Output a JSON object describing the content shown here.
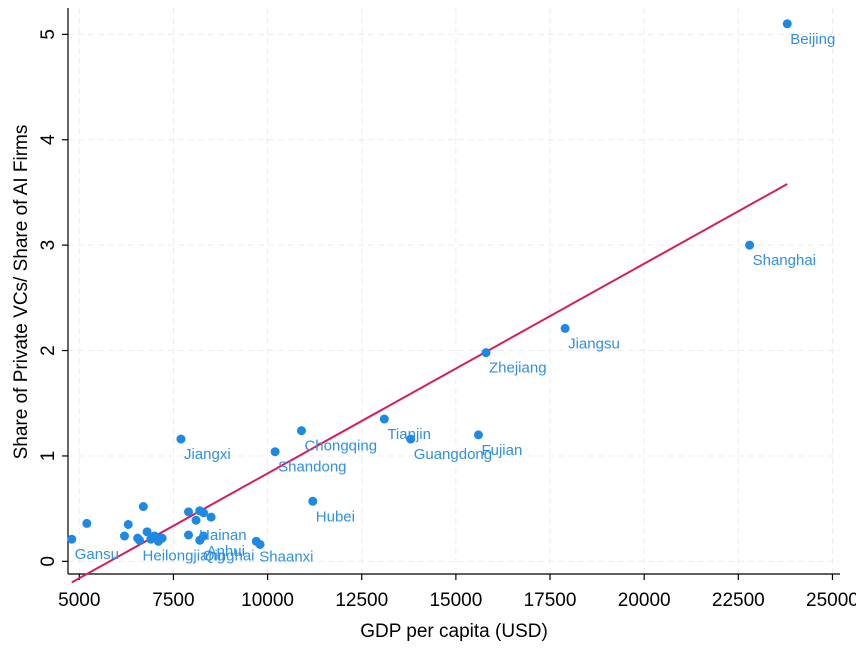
{
  "chart_data": {
    "type": "scatter",
    "xlabel": "GDP per capita (USD)",
    "ylabel": "Share of Private VCs/ Share of AI Firms",
    "xlim": [
      4700,
      25200
    ],
    "ylim": [
      -0.12,
      5.25
    ],
    "xticks": [
      5000,
      7500,
      10000,
      12500,
      15000,
      17500,
      20000,
      22500,
      25000
    ],
    "yticks": [
      0,
      1,
      2,
      3,
      4,
      5
    ],
    "xtick_labels": [
      "5000",
      "7500",
      "10000",
      "12500",
      "15000",
      "17500",
      "20000",
      "22500",
      "25000"
    ],
    "ytick_labels": [
      "0",
      "1",
      "2",
      "3",
      "4",
      "5"
    ],
    "grid": true,
    "points": [
      {
        "x": 23800,
        "y": 5.1,
        "label": "Beijing"
      },
      {
        "x": 22800,
        "y": 3.0,
        "label": "Shanghai"
      },
      {
        "x": 17900,
        "y": 2.21,
        "label": "Jiangsu"
      },
      {
        "x": 15800,
        "y": 1.98,
        "label": "Zhejiang"
      },
      {
        "x": 15600,
        "y": 1.2,
        "label": "Fujian"
      },
      {
        "x": 13800,
        "y": 1.16,
        "label": "Guangdong"
      },
      {
        "x": 13100,
        "y": 1.35,
        "label": "Tianjin"
      },
      {
        "x": 10900,
        "y": 1.24,
        "label": "Chongqing"
      },
      {
        "x": 10200,
        "y": 1.04,
        "label": "Shandong"
      },
      {
        "x": 11200,
        "y": 0.57,
        "label": "Hubei"
      },
      {
        "x": 7700,
        "y": 1.16,
        "label": "Jiangxi"
      },
      {
        "x": 9700,
        "y": 0.19,
        "label": "Shaanxi"
      },
      {
        "x": 8300,
        "y": 0.24,
        "label": "Anhui"
      },
      {
        "x": 8200,
        "y": 0.2,
        "label": "Qinghai"
      },
      {
        "x": 8100,
        "y": 0.39,
        "label": "Hainan"
      },
      {
        "x": 6600,
        "y": 0.2,
        "label": "Heilongjiang"
      },
      {
        "x": 4800,
        "y": 0.21,
        "label": "Gansu"
      },
      {
        "x": 5200,
        "y": 0.36,
        "label": ""
      },
      {
        "x": 6200,
        "y": 0.24,
        "label": ""
      },
      {
        "x": 6300,
        "y": 0.35,
        "label": ""
      },
      {
        "x": 6700,
        "y": 0.52,
        "label": ""
      },
      {
        "x": 6800,
        "y": 0.28,
        "label": ""
      },
      {
        "x": 6900,
        "y": 0.21,
        "label": ""
      },
      {
        "x": 7000,
        "y": 0.24,
        "label": ""
      },
      {
        "x": 7100,
        "y": 0.19,
        "label": ""
      },
      {
        "x": 7200,
        "y": 0.22,
        "label": ""
      },
      {
        "x": 6550,
        "y": 0.22,
        "label": ""
      },
      {
        "x": 7900,
        "y": 0.47,
        "label": ""
      },
      {
        "x": 7900,
        "y": 0.25,
        "label": ""
      },
      {
        "x": 8200,
        "y": 0.48,
        "label": ""
      },
      {
        "x": 8300,
        "y": 0.46,
        "label": ""
      },
      {
        "x": 8500,
        "y": 0.42,
        "label": ""
      },
      {
        "x": 9800,
        "y": 0.16,
        "label": ""
      }
    ],
    "fit_line": {
      "x": [
        4800,
        23800
      ],
      "y": [
        -0.2,
        3.58
      ]
    }
  }
}
